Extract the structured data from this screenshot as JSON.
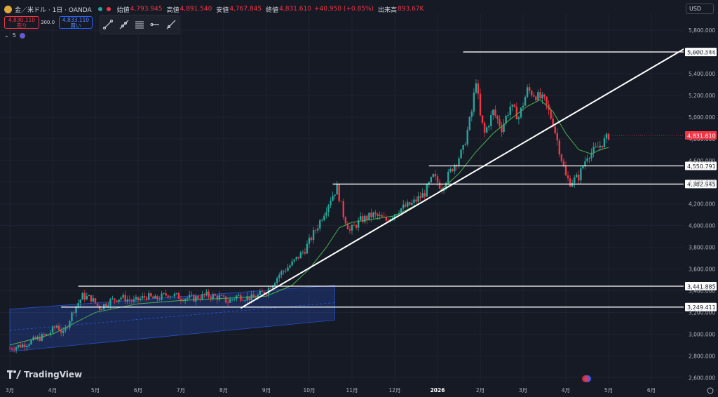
{
  "header": {
    "symbol": "金／米ドル · 1日 · OANDA",
    "open_label": "始値",
    "open": "4,793.945",
    "high_label": "高値",
    "high": "4,891.540",
    "low_label": "安値",
    "low": "4,767.845",
    "close_label": "終値",
    "close": "4,831.610",
    "change": "+40.950 (+0.85%)",
    "volume_label": "出来高",
    "volume": "893.67K"
  },
  "trade": {
    "sell_price": "4,830.110",
    "sell_label": "売り",
    "spread": "300.0",
    "buy_price": "4,833.110",
    "buy_label": "買い"
  },
  "indicator_count": "5",
  "currency": "USD",
  "brand": "TradingView",
  "colors": {
    "up": "#26a69a",
    "down": "#f23645",
    "ma": "#4caf50",
    "channel": "#2962ff",
    "price_tag": "#f23645"
  },
  "tool_icons": [
    "trend-line-icon",
    "ray-icon",
    "parallel-channel-icon",
    "horizontal-ray-icon",
    "extended-line-icon"
  ],
  "chart_data": {
    "type": "candlestick",
    "ylim": [
      2550,
      5950
    ],
    "yticks": [
      "5,800.000",
      "5,600.000",
      "5,400.000",
      "5,200.000",
      "5,000.000",
      "4,800.000",
      "4,600.000",
      "4,400.000",
      "4,200.000",
      "4,000.000",
      "3,800.000",
      "3,600.000",
      "3,400.000",
      "3,200.000",
      "3,000.000",
      "2,800.000",
      "2,600.000"
    ],
    "ytick_values": [
      5800,
      5600,
      5400,
      5200,
      5000,
      4800,
      4600,
      4400,
      4200,
      4000,
      3800,
      3600,
      3400,
      3200,
      3000,
      2800,
      2600
    ],
    "xticks": [
      {
        "label": "3月",
        "month": 0
      },
      {
        "label": "4月",
        "month": 1
      },
      {
        "label": "5月",
        "month": 2
      },
      {
        "label": "6月",
        "month": 3
      },
      {
        "label": "7月",
        "month": 4
      },
      {
        "label": "8月",
        "month": 5
      },
      {
        "label": "9月",
        "month": 6
      },
      {
        "label": "10月",
        "month": 7
      },
      {
        "label": "11月",
        "month": 8
      },
      {
        "label": "12月",
        "month": 9
      },
      {
        "label": "2026",
        "month": 10
      },
      {
        "label": "2月",
        "month": 11
      },
      {
        "label": "3月",
        "month": 12
      },
      {
        "label": "4月",
        "month": 13
      },
      {
        "label": "5月",
        "month": 14
      },
      {
        "label": "6月",
        "month": 15
      }
    ],
    "last_price": "4,831.610",
    "last_value": 4831.61,
    "horizontal_levels": [
      {
        "label": "5,600.544",
        "value": 5600.544,
        "from_month": 10.6
      },
      {
        "label": "4,550.791",
        "value": 4550.791,
        "from_month": 9.8
      },
      {
        "label": "4,382.945",
        "value": 4382.945,
        "from_month": 7.55
      },
      {
        "label": "3,441.885",
        "value": 3441.885,
        "from_month": 1.6
      },
      {
        "label": "3,249.411",
        "value": 3249.411,
        "from_month": 1.2
      }
    ],
    "trendline": {
      "from": [
        5.4,
        3240
      ],
      "to": [
        15.9,
        5660
      ]
    },
    "channel": {
      "upper": [
        [
          0,
          3230
        ],
        [
          7.6,
          3450
        ]
      ],
      "lower": [
        [
          0,
          2840
        ],
        [
          7.6,
          3130
        ]
      ]
    },
    "price_path": [
      [
        0,
        2870
      ],
      [
        0.3,
        2900
      ],
      [
        0.6,
        2950
      ],
      [
        0.9,
        3000
      ],
      [
        1.1,
        3080
      ],
      [
        1.25,
        3000
      ],
      [
        1.5,
        3230
      ],
      [
        1.7,
        3350
      ],
      [
        1.9,
        3330
      ],
      [
        2.1,
        3240
      ],
      [
        2.3,
        3300
      ],
      [
        2.6,
        3340
      ],
      [
        2.9,
        3300
      ],
      [
        3.2,
        3350
      ],
      [
        3.4,
        3320
      ],
      [
        3.7,
        3370
      ],
      [
        4.0,
        3340
      ],
      [
        4.3,
        3330
      ],
      [
        4.6,
        3360
      ],
      [
        4.9,
        3340
      ],
      [
        5.1,
        3300
      ],
      [
        5.3,
        3350
      ],
      [
        5.5,
        3340
      ],
      [
        5.7,
        3330
      ],
      [
        6.0,
        3400
      ],
      [
        6.3,
        3550
      ],
      [
        6.6,
        3650
      ],
      [
        6.9,
        3780
      ],
      [
        7.2,
        4000
      ],
      [
        7.5,
        4250
      ],
      [
        7.65,
        4350
      ],
      [
        7.8,
        4100
      ],
      [
        7.95,
        3950
      ],
      [
        8.2,
        4050
      ],
      [
        8.5,
        4100
      ],
      [
        8.8,
        4050
      ],
      [
        9.1,
        4150
      ],
      [
        9.4,
        4200
      ],
      [
        9.7,
        4300
      ],
      [
        9.9,
        4450
      ],
      [
        10.1,
        4350
      ],
      [
        10.3,
        4500
      ],
      [
        10.6,
        4700
      ],
      [
        10.8,
        5050
      ],
      [
        10.9,
        5350
      ],
      [
        11.0,
        5000
      ],
      [
        11.1,
        4850
      ],
      [
        11.3,
        5050
      ],
      [
        11.5,
        4900
      ],
      [
        11.7,
        5100
      ],
      [
        11.9,
        5000
      ],
      [
        12.1,
        5250
      ],
      [
        12.3,
        5200
      ],
      [
        12.5,
        5150
      ],
      [
        12.7,
        4950
      ],
      [
        12.85,
        4700
      ],
      [
        13.0,
        4450
      ],
      [
        13.1,
        4400
      ],
      [
        13.3,
        4450
      ],
      [
        13.5,
        4650
      ],
      [
        13.7,
        4700
      ],
      [
        13.9,
        4780
      ],
      [
        14.0,
        4830
      ]
    ],
    "ma_path": [
      [
        0,
        2900
      ],
      [
        1.0,
        3000
      ],
      [
        2.0,
        3200
      ],
      [
        3.0,
        3280
      ],
      [
        4.0,
        3310
      ],
      [
        5.0,
        3330
      ],
      [
        6.0,
        3350
      ],
      [
        6.6,
        3450
      ],
      [
        7.0,
        3600
      ],
      [
        7.4,
        3800
      ],
      [
        7.7,
        3980
      ],
      [
        8.0,
        4030
      ],
      [
        8.5,
        4060
      ],
      [
        9.0,
        4090
      ],
      [
        9.5,
        4190
      ],
      [
        10.0,
        4300
      ],
      [
        10.5,
        4480
      ],
      [
        10.9,
        4680
      ],
      [
        11.3,
        4850
      ],
      [
        11.7,
        4980
      ],
      [
        12.1,
        5100
      ],
      [
        12.4,
        5160
      ],
      [
        12.7,
        5050
      ],
      [
        13.0,
        4850
      ],
      [
        13.3,
        4700
      ],
      [
        13.6,
        4660
      ],
      [
        13.8,
        4700
      ],
      [
        14.0,
        4720
      ]
    ]
  }
}
